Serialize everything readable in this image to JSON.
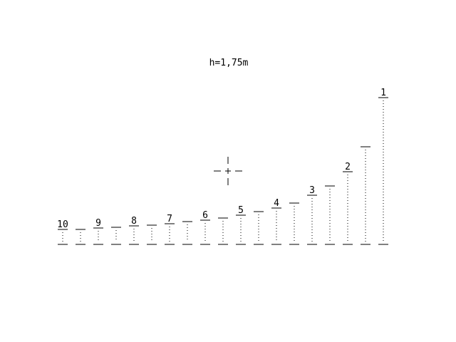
{
  "header": {
    "height_label": "h=1,75m"
  },
  "rangefinder": {
    "distance_labels": [
      "10",
      "9",
      "8",
      "7",
      "6",
      "5",
      "4",
      "3",
      "2",
      "1"
    ],
    "marker_count": 19
  },
  "colors": {
    "ink": "#000000",
    "background": "#ffffff"
  }
}
